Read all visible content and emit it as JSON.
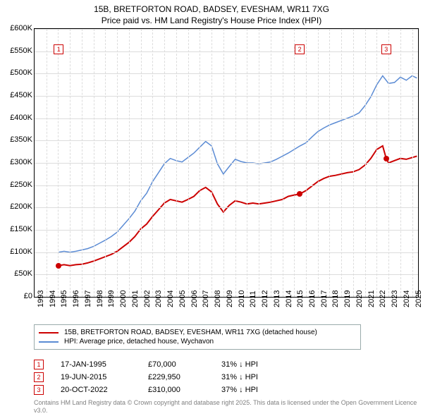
{
  "title_lines": [
    "15B, BRETFORTON ROAD, BADSEY, EVESHAM, WR11 7XG",
    "Price paid vs. HM Land Registry's House Price Index (HPI)"
  ],
  "chart": {
    "ylim": [
      0,
      600
    ],
    "ytick_step": 50,
    "yticks": [
      "£0",
      "£50K",
      "£100K",
      "£150K",
      "£200K",
      "£250K",
      "£300K",
      "£350K",
      "£400K",
      "£450K",
      "£500K",
      "£550K",
      "£600K"
    ],
    "xlim": [
      1993,
      2025.5
    ],
    "xticks": [
      1993,
      1994,
      1995,
      1996,
      1997,
      1998,
      1999,
      2000,
      2001,
      2002,
      2003,
      2004,
      2005,
      2006,
      2007,
      2008,
      2009,
      2010,
      2011,
      2012,
      2013,
      2014,
      2015,
      2016,
      2017,
      2018,
      2019,
      2020,
      2021,
      2022,
      2023,
      2024,
      2025
    ],
    "grid_color": "#dcdcdc",
    "background_color": "#ffffff",
    "series": [
      {
        "name": "property",
        "label": "15B, BRETFORTON ROAD, BADSEY, EVESHAM, WR11 7XG (detached house)",
        "color": "#cc0000",
        "width": 2,
        "points": [
          [
            1995.05,
            70
          ],
          [
            1995.5,
            72
          ],
          [
            1996,
            70
          ],
          [
            1996.5,
            72
          ],
          [
            1997,
            73
          ],
          [
            1997.5,
            76
          ],
          [
            1998,
            80
          ],
          [
            1998.5,
            85
          ],
          [
            1999,
            90
          ],
          [
            1999.5,
            95
          ],
          [
            2000,
            102
          ],
          [
            2000.5,
            112
          ],
          [
            2001,
            122
          ],
          [
            2001.5,
            135
          ],
          [
            2002,
            152
          ],
          [
            2002.5,
            163
          ],
          [
            2003,
            180
          ],
          [
            2003.5,
            195
          ],
          [
            2004,
            210
          ],
          [
            2004.5,
            218
          ],
          [
            2005,
            215
          ],
          [
            2005.5,
            212
          ],
          [
            2006,
            218
          ],
          [
            2006.5,
            225
          ],
          [
            2007,
            238
          ],
          [
            2007.5,
            245
          ],
          [
            2008,
            235
          ],
          [
            2008.5,
            208
          ],
          [
            2009,
            190
          ],
          [
            2009.5,
            205
          ],
          [
            2010,
            215
          ],
          [
            2010.5,
            212
          ],
          [
            2011,
            208
          ],
          [
            2011.5,
            210
          ],
          [
            2012,
            208
          ],
          [
            2012.5,
            210
          ],
          [
            2013,
            212
          ],
          [
            2013.5,
            215
          ],
          [
            2014,
            218
          ],
          [
            2014.5,
            225
          ],
          [
            2015,
            228
          ],
          [
            2015.47,
            230
          ],
          [
            2016,
            238
          ],
          [
            2016.5,
            248
          ],
          [
            2017,
            258
          ],
          [
            2017.5,
            265
          ],
          [
            2018,
            270
          ],
          [
            2018.5,
            272
          ],
          [
            2019,
            275
          ],
          [
            2019.5,
            278
          ],
          [
            2020,
            280
          ],
          [
            2020.5,
            285
          ],
          [
            2021,
            295
          ],
          [
            2021.5,
            310
          ],
          [
            2022,
            330
          ],
          [
            2022.5,
            338
          ],
          [
            2022.8,
            310
          ],
          [
            2023,
            300
          ],
          [
            2023.5,
            305
          ],
          [
            2024,
            310
          ],
          [
            2024.5,
            308
          ],
          [
            2025,
            312
          ],
          [
            2025.4,
            315
          ]
        ]
      },
      {
        "name": "hpi",
        "label": "HPI: Average price, detached house, Wychavon",
        "color": "#5b8bd4",
        "width": 1.5,
        "points": [
          [
            1995.05,
            100
          ],
          [
            1995.5,
            102
          ],
          [
            1996,
            100
          ],
          [
            1996.5,
            102
          ],
          [
            1997,
            105
          ],
          [
            1997.5,
            108
          ],
          [
            1998,
            113
          ],
          [
            1998.5,
            120
          ],
          [
            1999,
            127
          ],
          [
            1999.5,
            135
          ],
          [
            2000,
            145
          ],
          [
            2000.5,
            160
          ],
          [
            2001,
            175
          ],
          [
            2001.5,
            192
          ],
          [
            2002,
            215
          ],
          [
            2002.5,
            232
          ],
          [
            2003,
            258
          ],
          [
            2003.5,
            278
          ],
          [
            2004,
            298
          ],
          [
            2004.5,
            310
          ],
          [
            2005,
            305
          ],
          [
            2005.5,
            302
          ],
          [
            2006,
            312
          ],
          [
            2006.5,
            322
          ],
          [
            2007,
            335
          ],
          [
            2007.5,
            348
          ],
          [
            2008,
            338
          ],
          [
            2008.5,
            298
          ],
          [
            2009,
            275
          ],
          [
            2009.5,
            292
          ],
          [
            2010,
            308
          ],
          [
            2010.5,
            303
          ],
          [
            2011,
            300
          ],
          [
            2011.5,
            300
          ],
          [
            2012,
            298
          ],
          [
            2012.5,
            300
          ],
          [
            2013,
            302
          ],
          [
            2013.5,
            308
          ],
          [
            2014,
            315
          ],
          [
            2014.5,
            322
          ],
          [
            2015,
            330
          ],
          [
            2015.5,
            338
          ],
          [
            2016,
            345
          ],
          [
            2016.5,
            358
          ],
          [
            2017,
            370
          ],
          [
            2017.5,
            378
          ],
          [
            2018,
            385
          ],
          [
            2018.5,
            390
          ],
          [
            2019,
            395
          ],
          [
            2019.5,
            400
          ],
          [
            2020,
            405
          ],
          [
            2020.5,
            412
          ],
          [
            2021,
            428
          ],
          [
            2021.5,
            448
          ],
          [
            2022,
            475
          ],
          [
            2022.5,
            495
          ],
          [
            2023,
            478
          ],
          [
            2023.5,
            480
          ],
          [
            2024,
            492
          ],
          [
            2024.5,
            485
          ],
          [
            2025,
            495
          ],
          [
            2025.4,
            490
          ]
        ]
      }
    ],
    "markers": [
      {
        "n": "1",
        "x": 1995.05,
        "y": 555,
        "dot_x": 1995.05,
        "dot_y": 70,
        "color": "#cc0000"
      },
      {
        "n": "2",
        "x": 2015.47,
        "y": 555,
        "dot_x": 2015.47,
        "dot_y": 230,
        "color": "#cc0000"
      },
      {
        "n": "3",
        "x": 2022.8,
        "y": 555,
        "dot_x": 2022.8,
        "dot_y": 310,
        "color": "#cc0000"
      }
    ]
  },
  "legend": [
    {
      "label": "15B, BRETFORTON ROAD, BADSEY, EVESHAM, WR11 7XG (detached house)",
      "color": "#cc0000"
    },
    {
      "label": "HPI: Average price, detached house, Wychavon",
      "color": "#5b8bd4"
    }
  ],
  "transactions": [
    {
      "n": "1",
      "date": "17-JAN-1995",
      "price": "£70,000",
      "delta": "31% ↓ HPI",
      "color": "#cc0000"
    },
    {
      "n": "2",
      "date": "19-JUN-2015",
      "price": "£229,950",
      "delta": "31% ↓ HPI",
      "color": "#cc0000"
    },
    {
      "n": "3",
      "date": "20-OCT-2022",
      "price": "£310,000",
      "delta": "37% ↓ HPI",
      "color": "#cc0000"
    }
  ],
  "footnote": "Contains HM Land Registry data © Crown copyright and database right 2025.\nThis data is licensed under the Open Government Licence v3.0."
}
